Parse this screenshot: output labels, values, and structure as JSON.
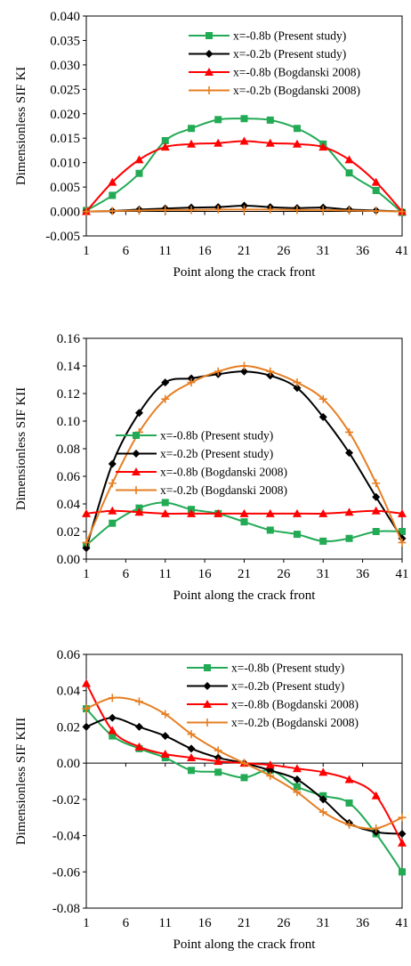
{
  "chart_data": [
    {
      "type": "line",
      "xlabel": "Point along the crack front",
      "ylabel": "Dimensionless SIF KI",
      "xlim": [
        1,
        41
      ],
      "ylim": [
        -0.005,
        0.04
      ],
      "xticks": [
        1,
        6,
        11,
        16,
        21,
        26,
        31,
        36,
        41
      ],
      "yticks": [
        "-0.005",
        "0.000",
        "0.005",
        "0.010",
        "0.015",
        "0.020",
        "0.025",
        "0.030",
        "0.035",
        "0.040"
      ],
      "legend_position": "top-right",
      "series": [
        {
          "name": "x=-0.8b (Present study)",
          "color": "#22aa55",
          "marker": "square",
          "x": [
            1,
            4.3,
            7.7,
            11,
            14.3,
            17.7,
            21,
            24.3,
            27.7,
            31,
            34.3,
            37.7,
            41
          ],
          "y": [
            0.0002,
            0.0033,
            0.0078,
            0.0145,
            0.017,
            0.0188,
            0.019,
            0.0187,
            0.017,
            0.0138,
            0.0079,
            0.0043,
            -0.0002
          ]
        },
        {
          "name": "x=-0.2b (Present study)",
          "color": "#000000",
          "marker": "diamond",
          "x": [
            1,
            4.3,
            7.7,
            11,
            14.3,
            17.7,
            21,
            24.3,
            27.7,
            31,
            34.3,
            37.7,
            41
          ],
          "y": [
            0.0,
            0.0001,
            0.0004,
            0.0006,
            0.0008,
            0.0009,
            0.0012,
            0.0009,
            0.0007,
            0.0008,
            0.0004,
            0.0002,
            0.0
          ]
        },
        {
          "name": "x=-0.8b (Bogdanski 2008)",
          "color": "#ff0000",
          "marker": "triangle",
          "x": [
            1,
            4.3,
            7.7,
            11,
            14.3,
            17.7,
            21,
            24.3,
            27.7,
            31,
            34.3,
            37.7,
            41
          ],
          "y": [
            0.0,
            0.006,
            0.0106,
            0.0132,
            0.0138,
            0.014,
            0.0144,
            0.014,
            0.0138,
            0.0132,
            0.0106,
            0.006,
            0.0
          ]
        },
        {
          "name": "x=-0.2b (Bogdanski 2008)",
          "color": "#e67e22",
          "marker": "plus",
          "x": [
            1,
            4.3,
            7.7,
            11,
            14.3,
            17.7,
            21,
            24.3,
            27.7,
            31,
            34.3,
            37.7,
            41
          ],
          "y": [
            0.0,
            0.0001,
            0.0002,
            0.0003,
            0.0003,
            0.0004,
            0.0004,
            0.0004,
            0.0003,
            0.0003,
            0.0002,
            0.0001,
            0.0
          ]
        }
      ]
    },
    {
      "type": "line",
      "xlabel": "Point along the crack front",
      "ylabel": "Dimensionless SIF KII",
      "xlim": [
        1,
        41
      ],
      "ylim": [
        0,
        0.16
      ],
      "xticks": [
        1,
        6,
        11,
        16,
        21,
        26,
        31,
        36,
        41
      ],
      "yticks": [
        "0.00",
        "0.02",
        "0.04",
        "0.06",
        "0.08",
        "0.10",
        "0.12",
        "0.14",
        "0.16"
      ],
      "legend_position": "center",
      "series": [
        {
          "name": "x=-0.8b (Present study)",
          "color": "#22aa55",
          "marker": "square",
          "x": [
            1,
            4.3,
            7.7,
            11,
            14.3,
            17.7,
            21,
            24.3,
            27.7,
            31,
            34.3,
            37.7,
            41
          ],
          "y": [
            0.01,
            0.026,
            0.037,
            0.041,
            0.036,
            0.033,
            0.027,
            0.021,
            0.018,
            0.013,
            0.015,
            0.02,
            0.02
          ]
        },
        {
          "name": "x=-0.2b (Present study)",
          "color": "#000000",
          "marker": "diamond",
          "x": [
            1,
            4.3,
            7.7,
            11,
            14.3,
            17.7,
            21,
            24.3,
            27.7,
            31,
            34.3,
            37.7,
            41
          ],
          "y": [
            0.008,
            0.069,
            0.106,
            0.128,
            0.131,
            0.134,
            0.136,
            0.133,
            0.124,
            0.103,
            0.077,
            0.045,
            0.015
          ]
        },
        {
          "name": "x=-0.8b (Bogdanski 2008)",
          "color": "#ff0000",
          "marker": "triangle",
          "x": [
            1,
            4.3,
            7.7,
            11,
            14.3,
            17.7,
            21,
            24.3,
            27.7,
            31,
            34.3,
            37.7,
            41
          ],
          "y": [
            0.033,
            0.035,
            0.034,
            0.033,
            0.033,
            0.033,
            0.033,
            0.033,
            0.033,
            0.033,
            0.034,
            0.035,
            0.033
          ]
        },
        {
          "name": "x=-0.2b (Bogdanski 2008)",
          "color": "#e67e22",
          "marker": "plus",
          "x": [
            1,
            4.3,
            7.7,
            11,
            14.3,
            17.7,
            21,
            24.3,
            27.7,
            31,
            34.3,
            37.7,
            41
          ],
          "y": [
            0.012,
            0.055,
            0.092,
            0.116,
            0.128,
            0.136,
            0.14,
            0.136,
            0.128,
            0.116,
            0.092,
            0.055,
            0.012
          ]
        }
      ]
    },
    {
      "type": "line",
      "xlabel": "Point along the crack front",
      "ylabel": "Dimensionless SIF KIII",
      "xlim": [
        1,
        41
      ],
      "ylim": [
        -0.08,
        0.06
      ],
      "xticks": [
        1,
        6,
        11,
        16,
        21,
        26,
        31,
        36,
        41
      ],
      "yticks": [
        "-0.08",
        "-0.06",
        "-0.04",
        "-0.02",
        "0.00",
        "0.02",
        "0.04",
        "0.06"
      ],
      "legend_position": "top-right",
      "series": [
        {
          "name": "x=-0.8b (Present study)",
          "color": "#22aa55",
          "marker": "square",
          "x": [
            1,
            4.3,
            7.7,
            11,
            14.3,
            17.7,
            21,
            24.3,
            27.7,
            31,
            34.3,
            37.7,
            41
          ],
          "y": [
            0.03,
            0.015,
            0.008,
            0.003,
            -0.004,
            -0.005,
            -0.008,
            -0.004,
            -0.013,
            -0.018,
            -0.022,
            -0.039,
            -0.06
          ]
        },
        {
          "name": "x=-0.2b (Present study)",
          "color": "#000000",
          "marker": "diamond",
          "x": [
            1,
            4.3,
            7.7,
            11,
            14.3,
            17.7,
            21,
            24.3,
            27.7,
            31,
            34.3,
            37.7,
            41
          ],
          "y": [
            0.02,
            0.025,
            0.02,
            0.015,
            0.008,
            0.003,
            0.0,
            -0.004,
            -0.009,
            -0.02,
            -0.033,
            -0.038,
            -0.039
          ]
        },
        {
          "name": "x=-0.8b (Bogdanski 2008)",
          "color": "#ff0000",
          "marker": "triangle",
          "x": [
            1,
            4.3,
            7.7,
            11,
            14.3,
            17.7,
            21,
            24.3,
            27.7,
            31,
            34.3,
            37.7,
            41
          ],
          "y": [
            0.044,
            0.018,
            0.009,
            0.005,
            0.003,
            0.001,
            0.0,
            -0.001,
            -0.003,
            -0.005,
            -0.009,
            -0.018,
            -0.044
          ]
        },
        {
          "name": "x=-0.2b (Bogdanski 2008)",
          "color": "#e67e22",
          "marker": "plus",
          "x": [
            1,
            4.3,
            7.7,
            11,
            14.3,
            17.7,
            21,
            24.3,
            27.7,
            31,
            34.3,
            37.7,
            41
          ],
          "y": [
            0.03,
            0.036,
            0.034,
            0.027,
            0.016,
            0.007,
            0.0,
            -0.007,
            -0.016,
            -0.027,
            -0.034,
            -0.036,
            -0.03
          ]
        }
      ]
    }
  ]
}
